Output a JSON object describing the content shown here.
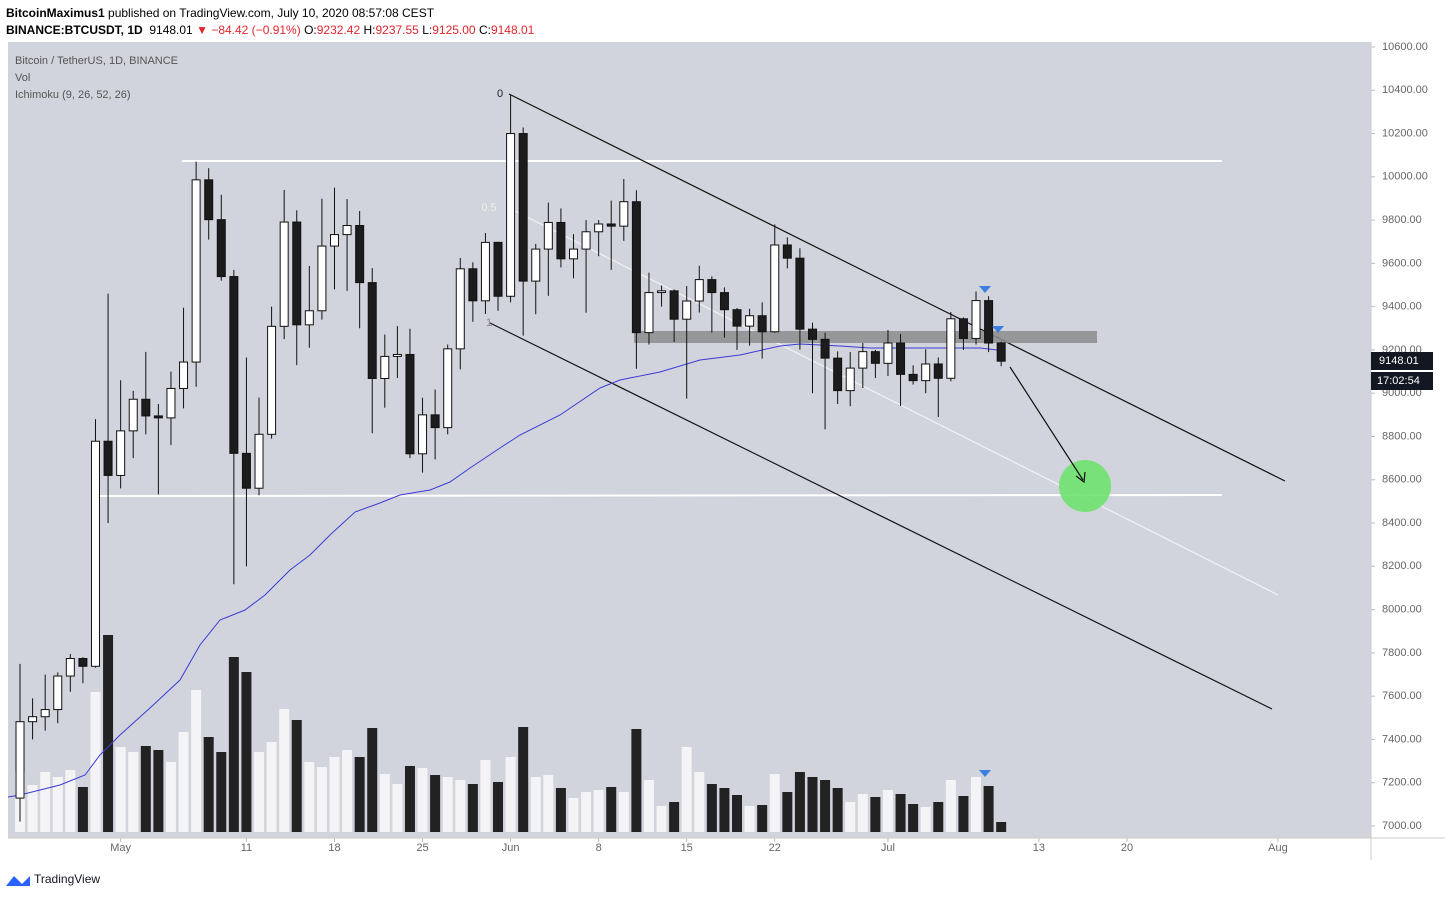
{
  "header": {
    "author": "BitcoinMaximus1",
    "published": " published on TradingView.com, July 10, 2020 08:57:08 CEST",
    "symbol": "BINANCE:BTCUSDT, 1D",
    "price": "9148.01",
    "arrow": "▼",
    "change": "−84.42 (−0.91%)",
    "ohlc": [
      {
        "label": "O:",
        "value": "9232.42"
      },
      {
        "label": "H:",
        "value": "9237.55"
      },
      {
        "label": "L:",
        "value": "9125.00"
      },
      {
        "label": "C:",
        "value": "9148.01"
      }
    ]
  },
  "chart_data": {
    "type": "candlestick",
    "legend": [
      "Bitcoin / TetherUS, 1D, BINANCE",
      "Vol",
      "Ichimoku (9, 26, 52, 26)"
    ],
    "open": [
      7129,
      7482,
      7505,
      7538,
      7693,
      7774,
      7738,
      8778,
      8620,
      8826,
      8972,
      8895,
      8886,
      9022,
      9144,
      9986,
      9802,
      9539,
      8722,
      8561,
      8810,
      9309,
      9791,
      9316,
      9381,
      9680,
      9733,
      9775,
      9511,
      9068,
      9170,
      9179,
      8720,
      8900,
      8841,
      9205,
      9575,
      9427,
      9697,
      9448,
      10200,
      9518,
      9666,
      9789,
      9621,
      9666,
      9746,
      9782,
      9772,
      9885,
      9280,
      9465,
      9473,
      9342,
      9426,
      9525,
      9465,
      9386,
      9310,
      9358,
      9284,
      9685,
      9624,
      9296,
      9249,
      9162,
      9012,
      9116,
      9192,
      9138,
      9232,
      9087,
      9058,
      9135,
      9069,
      9344,
      9253,
      9428,
      9232.42
    ],
    "high": [
      7749,
      7590,
      7700,
      7710,
      7795,
      7780,
      8880,
      9460,
      9060,
      9011,
      9191,
      8950,
      9100,
      9395,
      10070,
      10040,
      9917,
      9570,
      9165,
      8980,
      9400,
      9939,
      9845,
      9588,
      9899,
      9950,
      9897,
      9842,
      9578,
      9271,
      9310,
      9298,
      8979,
      9017,
      9225,
      9625,
      9605,
      9740,
      9700,
      10380,
      10228,
      9690,
      9881,
      9854,
      9735,
      9800,
      9800,
      9890,
      9990,
      9938,
      9557,
      9498,
      9480,
      9495,
      9589,
      9540,
      9489,
      9394,
      9390,
      9420,
      9780,
      9720,
      9670,
      9326,
      9280,
      9193,
      9190,
      9232,
      9200,
      9292,
      9274,
      9129,
      9203,
      9165,
      9375,
      9350,
      9470,
      9448,
      9237.55
    ],
    "low": [
      7020,
      7400,
      7441,
      7475,
      7620,
      7660,
      7732,
      8400,
      8560,
      8700,
      8810,
      8533,
      8760,
      8930,
      9030,
      9710,
      9520,
      8117,
      8200,
      8528,
      8790,
      9250,
      9130,
      9210,
      9340,
      9480,
      9473,
      9300,
      8815,
      8933,
      9070,
      8700,
      8633,
      8694,
      8810,
      9110,
      9330,
      9366,
      9381,
      9420,
      9266,
      9365,
      9450,
      9581,
      9531,
      9372,
      9633,
      9570,
      9704,
      9113,
      9225,
      9400,
      9237,
      8975,
      9373,
      9280,
      9257,
      9200,
      9220,
      9160,
      9279,
      9577,
      9201,
      9000,
      8833,
      8950,
      8940,
      9024,
      9070,
      9080,
      8941,
      9040,
      9000,
      8890,
      9055,
      9200,
      9225,
      9190,
      9125
    ],
    "close": [
      7482,
      7505,
      7538,
      7693,
      7774,
      7738,
      8778,
      8620,
      8826,
      8972,
      8895,
      8886,
      9022,
      9144,
      9986,
      9802,
      9539,
      8722,
      8561,
      8810,
      9309,
      9791,
      9316,
      9381,
      9680,
      9733,
      9775,
      9511,
      9068,
      9170,
      9179,
      8720,
      8900,
      8841,
      9205,
      9575,
      9427,
      9697,
      9448,
      10200,
      9518,
      9666,
      9789,
      9621,
      9666,
      9746,
      9782,
      9772,
      9885,
      9280,
      9465,
      9473,
      9342,
      9426,
      9525,
      9465,
      9386,
      9310,
      9358,
      9284,
      9685,
      9624,
      9296,
      9249,
      9162,
      9012,
      9116,
      9192,
      9138,
      9232,
      9087,
      9058,
      9135,
      9069,
      9344,
      9253,
      9428,
      9232,
      9148.01
    ],
    "volume": [
      42000,
      32900,
      42000,
      38500,
      43400,
      31500,
      98000,
      137900,
      59500,
      56000,
      60200,
      57400,
      49000,
      70000,
      99400,
      66500,
      56000,
      122500,
      112000,
      56000,
      63000,
      86100,
      78400,
      49000,
      45500,
      52500,
      57400,
      52500,
      72800,
      40600,
      33600,
      46200,
      44800,
      39900,
      38500,
      36400,
      33600,
      50400,
      35000,
      52500,
      73500,
      38500,
      39900,
      30800,
      23800,
      28000,
      29400,
      31500,
      28000,
      72100,
      36400,
      18200,
      21000,
      59500,
      42000,
      33600,
      30800,
      25900,
      18200,
      18900,
      40600,
      28000,
      42000,
      38500,
      36400,
      30800,
      21000,
      26600,
      24500,
      29400,
      26600,
      19600,
      17500,
      21000,
      36400,
      25200,
      38500,
      32200,
      7000
    ],
    "fib_labels": [
      "0",
      "0.5",
      "1"
    ],
    "last_price": "9148.01",
    "countdown": "17:02:54",
    "ylim": [
      6944.5,
      10623
    ],
    "yticks": [
      {
        "value": 7000,
        "label": "7000.00"
      },
      {
        "value": 7200,
        "label": "7200.00"
      },
      {
        "value": 7400,
        "label": "7400.00"
      },
      {
        "value": 7600,
        "label": "7600.00"
      },
      {
        "value": 7800,
        "label": "7800.00"
      },
      {
        "value": 8000,
        "label": "8000.00"
      },
      {
        "value": 8200,
        "label": "8200.00"
      },
      {
        "value": 8400,
        "label": "8400.00"
      },
      {
        "value": 8600,
        "label": "8600.00"
      },
      {
        "value": 8800,
        "label": "8800.00"
      },
      {
        "value": 9000,
        "label": "9000.00"
      },
      {
        "value": 9200,
        "label": "9200.00"
      },
      {
        "value": 9400,
        "label": "9400.00"
      },
      {
        "value": 9600,
        "label": "9600.00"
      },
      {
        "value": 9800,
        "label": "9800.00"
      },
      {
        "value": 10000,
        "label": "10000.00"
      },
      {
        "value": 10200,
        "label": "10200.00"
      },
      {
        "value": 10400,
        "label": "10400.00"
      },
      {
        "value": 10600,
        "label": "10600.00"
      }
    ],
    "xlim": [
      -0.955,
      107.4
    ],
    "xticks": [
      {
        "value": 8,
        "label": "May"
      },
      {
        "value": 18,
        "label": "11"
      },
      {
        "value": 25,
        "label": "18"
      },
      {
        "value": 32,
        "label": "25"
      },
      {
        "value": 39,
        "label": "Jun"
      },
      {
        "value": 46,
        "label": "8"
      },
      {
        "value": 53,
        "label": "15"
      },
      {
        "value": 60,
        "label": "22"
      },
      {
        "value": 69,
        "label": "Jul"
      },
      {
        "value": 81,
        "label": "13"
      },
      {
        "value": 88,
        "label": "20"
      },
      {
        "value": 100,
        "label": "Aug"
      }
    ],
    "up_color": "#ffffff",
    "down_color": "#1c1c1c",
    "footer": "TradingView"
  }
}
